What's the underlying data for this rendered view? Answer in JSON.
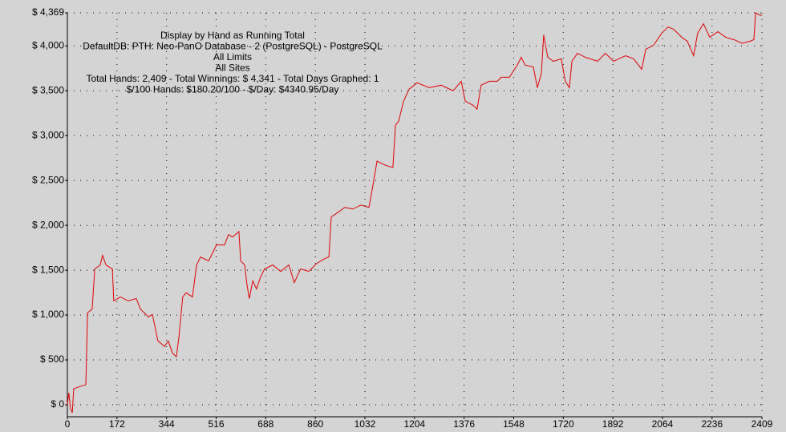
{
  "chart_data": {
    "type": "line",
    "title_lines": [
      "Display by Hand as Running Total",
      "DefaultDB: PTH: Neo-PanO Database - 2 (PostgreSQL) - PostgreSQL",
      "All Limits",
      "All Sites",
      "Total Hands: 2,409 - Total Winnings: $ 4,341 - Total Days Graphed: 1",
      "$/100 Hands: $180.20/100 - $/Day: $4340.95/Day"
    ],
    "x": [
      0,
      5,
      11,
      17,
      22,
      45,
      64,
      70,
      86,
      95,
      114,
      122,
      134,
      156,
      161,
      184,
      211,
      239,
      253,
      281,
      295,
      314,
      337,
      350,
      364,
      378,
      387,
      400,
      412,
      434,
      448,
      462,
      490,
      517,
      545,
      559,
      573,
      595,
      601,
      615,
      623,
      631,
      643,
      656,
      670,
      684,
      712,
      740,
      768,
      787,
      809,
      837,
      865,
      893,
      907,
      915,
      935,
      962,
      990,
      1018,
      1046,
      1060,
      1074,
      1102,
      1129,
      1138,
      1149,
      1166,
      1185,
      1213,
      1255,
      1296,
      1338,
      1366,
      1380,
      1407,
      1421,
      1435,
      1463,
      1491,
      1505,
      1533,
      1560,
      1574,
      1588,
      1616,
      1630,
      1644,
      1652,
      1666,
      1686,
      1713,
      1727,
      1741,
      1750,
      1769,
      1797,
      1839,
      1866,
      1894,
      1936,
      1964,
      1992,
      2006,
      2033,
      2061,
      2083,
      2103,
      2131,
      2150,
      2172,
      2186,
      2206,
      2228,
      2256,
      2284,
      2312,
      2340,
      2367,
      2381,
      2387,
      2403,
      2409
    ],
    "series": [
      {
        "name": "Running Total",
        "color": "#e00000",
        "values": [
          0,
          134,
          -45,
          -89,
          178,
          205,
          223,
          1024,
          1068,
          1514,
          1558,
          1665,
          1558,
          1514,
          1158,
          1202,
          1158,
          1184,
          1068,
          980,
          1006,
          712,
          650,
          712,
          579,
          534,
          757,
          1202,
          1247,
          1202,
          1558,
          1647,
          1603,
          1781,
          1781,
          1897,
          1870,
          1932,
          1603,
          1558,
          1336,
          1184,
          1380,
          1291,
          1425,
          1514,
          1558,
          1487,
          1558,
          1362,
          1514,
          1487,
          1576,
          1630,
          1647,
          2093,
          2137,
          2200,
          2182,
          2226,
          2200,
          2449,
          2716,
          2671,
          2645,
          3117,
          3161,
          3384,
          3517,
          3589,
          3535,
          3562,
          3500,
          3606,
          3384,
          3339,
          3295,
          3562,
          3606,
          3606,
          3651,
          3651,
          3785,
          3873,
          3785,
          3767,
          3535,
          3695,
          4123,
          3873,
          3829,
          3856,
          3606,
          3535,
          3829,
          3918,
          3873,
          3829,
          3918,
          3829,
          3891,
          3856,
          3740,
          3963,
          4007,
          4141,
          4212,
          4185,
          4096,
          4052,
          3891,
          4141,
          4248,
          4096,
          4159,
          4096,
          4070,
          4030,
          4052,
          4070,
          4369,
          4341,
          4341
        ]
      }
    ],
    "xlim": [
      0,
      2409
    ],
    "xticks": [
      0,
      172,
      344,
      516,
      688,
      860,
      1032,
      1204,
      1376,
      1548,
      1720,
      1892,
      2064,
      2236,
      2409
    ],
    "ylim": [
      -134,
      4369
    ],
    "yticks": [
      {
        "value": 0,
        "label": "$ 0"
      },
      {
        "value": 500,
        "label": "$ 500"
      },
      {
        "value": 1000,
        "label": "$ 1,000"
      },
      {
        "value": 1500,
        "label": "$ 1,500"
      },
      {
        "value": 2000,
        "label": "$ 2,000"
      },
      {
        "value": 2500,
        "label": "$ 2,500"
      },
      {
        "value": 3000,
        "label": "$ 3,000"
      },
      {
        "value": 3500,
        "label": "$ 3,500"
      },
      {
        "value": 4000,
        "label": "$ 4,000"
      },
      {
        "value": 4369,
        "label": "$ 4,369"
      }
    ],
    "grid": true
  }
}
